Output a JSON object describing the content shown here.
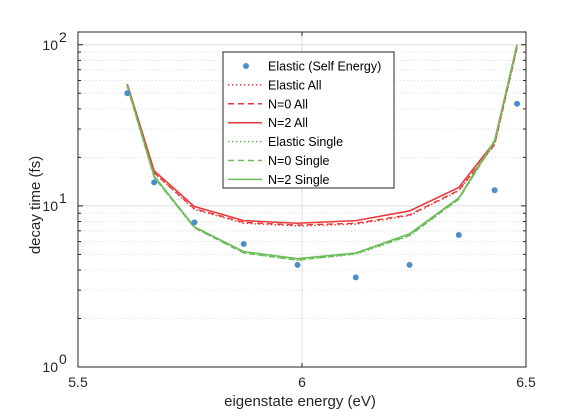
{
  "chart_data": {
    "type": "line",
    "xlabel": "eigenstate energy (eV)",
    "ylabel": "decay time (fs)",
    "xlim": [
      5.5,
      6.5
    ],
    "ylim": [
      1,
      120
    ],
    "yscale": "log",
    "grid": true,
    "legend_position": "top-center",
    "x_ticks": [
      {
        "value": 5.5,
        "label": "5.5"
      },
      {
        "value": 6.0,
        "label": "6"
      },
      {
        "value": 6.5,
        "label": "6.5"
      }
    ],
    "y_ticks": [
      {
        "value": 1,
        "base": "10",
        "exp": "0"
      },
      {
        "value": 10,
        "base": "10",
        "exp": "1"
      },
      {
        "value": 100,
        "base": "10",
        "exp": "2"
      }
    ],
    "colors": {
      "elastic_points": "#4c8fcb",
      "all": "#e8393b",
      "single": "#6cbd5a",
      "axes": "#262626",
      "grid": "#dcdcdc"
    },
    "series": [
      {
        "name": "Elastic (Self Energy)",
        "style": "points",
        "color": "#4c8fcb",
        "x": [
          5.61,
          5.67,
          5.76,
          5.87,
          5.99,
          6.12,
          6.24,
          6.35,
          6.43,
          6.48
        ],
        "y": [
          50,
          14,
          7.9,
          5.8,
          4.3,
          3.6,
          4.3,
          6.6,
          12.5,
          43
        ]
      },
      {
        "name": "Elastic All",
        "style": "dotted",
        "color": "#e8393b",
        "x": [
          5.61,
          5.67,
          5.76,
          5.87,
          5.99,
          6.12,
          6.24,
          6.35,
          6.43,
          6.48
        ],
        "y": [
          56,
          16,
          9.5,
          7.8,
          7.5,
          7.7,
          8.7,
          12.4,
          24,
          95
        ]
      },
      {
        "name": "N=0 All",
        "style": "dashed",
        "color": "#e8393b",
        "x": [
          5.61,
          5.67,
          5.76,
          5.87,
          5.99,
          6.12,
          6.24,
          6.35,
          6.43,
          6.48
        ],
        "y": [
          56,
          16,
          9.6,
          7.9,
          7.6,
          7.8,
          8.8,
          12.5,
          24,
          96
        ]
      },
      {
        "name": "N=2 All",
        "style": "solid",
        "color": "#e8393b",
        "x": [
          5.61,
          5.67,
          5.76,
          5.87,
          5.99,
          6.12,
          6.24,
          6.35,
          6.43,
          6.48
        ],
        "y": [
          57,
          16.5,
          9.9,
          8.1,
          7.8,
          8.1,
          9.3,
          13,
          25,
          100
        ]
      },
      {
        "name": "Elastic Single",
        "style": "dotted",
        "color": "#6cbd5a",
        "x": [
          5.61,
          5.67,
          5.76,
          5.87,
          5.99,
          6.12,
          6.24,
          6.35,
          6.43,
          6.48
        ],
        "y": [
          55,
          15,
          7.3,
          5.1,
          4.6,
          5.0,
          6.5,
          11,
          25,
          98
        ]
      },
      {
        "name": "N=0 Single",
        "style": "dashed",
        "color": "#6cbd5a",
        "x": [
          5.61,
          5.67,
          5.76,
          5.87,
          5.99,
          6.12,
          6.24,
          6.35,
          6.43,
          6.48
        ],
        "y": [
          55,
          15,
          7.3,
          5.1,
          4.6,
          5.05,
          6.55,
          11,
          25,
          98
        ]
      },
      {
        "name": "N=2 Single",
        "style": "solid",
        "color": "#6cbd5a",
        "x": [
          5.61,
          5.67,
          5.76,
          5.87,
          5.99,
          6.12,
          6.24,
          6.35,
          6.43,
          6.48
        ],
        "y": [
          56,
          15.3,
          7.4,
          5.2,
          4.7,
          5.1,
          6.7,
          11.2,
          25.5,
          100
        ]
      }
    ]
  }
}
